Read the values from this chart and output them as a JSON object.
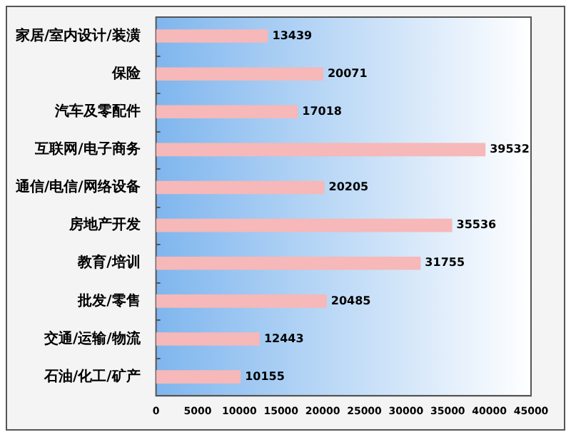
{
  "chart_data": {
    "type": "bar",
    "orientation": "horizontal",
    "categories": [
      "家居/室内设计/装潢",
      "保险",
      "汽车及零配件",
      "互联网/电子商务",
      "通信/电信/网络设备",
      "房地产开发",
      "教育/培训",
      "批发/零售",
      "交通/运输/物流",
      "石油/化工/矿产"
    ],
    "values": [
      13439,
      20071,
      17018,
      39532,
      20205,
      35536,
      31755,
      20485,
      12443,
      10155
    ],
    "color": "#f6b8b8",
    "xlim": [
      0,
      45000
    ],
    "xticks": [
      0,
      5000,
      10000,
      15000,
      20000,
      25000,
      30000,
      35000,
      40000,
      45000
    ],
    "data_labels": true,
    "grid": false,
    "legend": false
  }
}
